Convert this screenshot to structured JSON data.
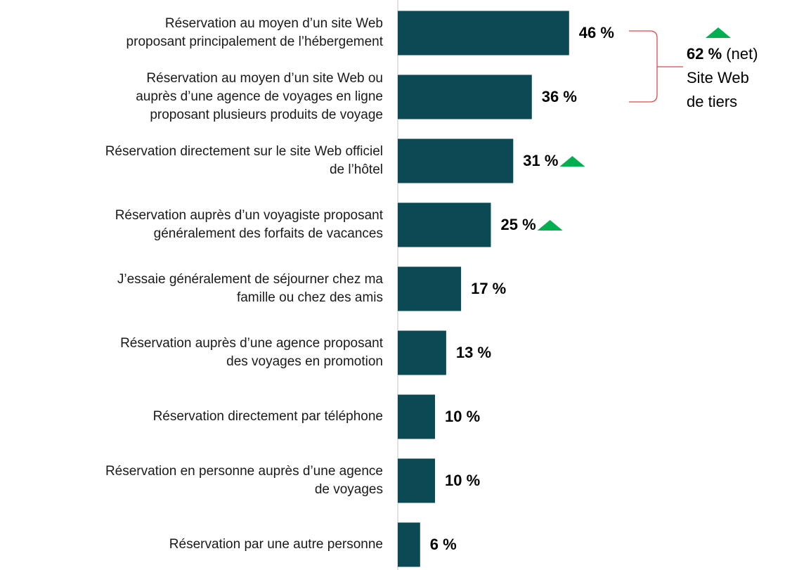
{
  "chart_data": {
    "type": "bar",
    "orientation": "horizontal",
    "categories": [
      "Réservation au moyen d’un site Web\nproposant principalement de l’hébergement",
      "Réservation au moyen d’un site Web ou\nauprès d’une agence de voyages en ligne\nproposant plusieurs produits de voyage",
      "Réservation directement sur le site Web officiel\nde l’hôtel",
      "Réservation auprès d’un voyagiste proposant\ngénéralement des forfaits de vacances",
      "J’essaie généralement de séjourner chez ma\nfamille ou chez des amis",
      "Réservation auprès d’une agence proposant\ndes voyages en promotion",
      "Réservation directement par téléphone",
      "Réservation en personne auprès d’une agence\nde voyages",
      "Réservation par une autre personne"
    ],
    "values": [
      46,
      36,
      31,
      25,
      17,
      13,
      10,
      10,
      6
    ],
    "value_labels": [
      "46 %",
      "36 %",
      "31 %",
      "25 %",
      "17 %",
      "13 %",
      "10 %",
      "10 %",
      "6 %"
    ],
    "increase": [
      false,
      false,
      true,
      true,
      false,
      false,
      false,
      false,
      false
    ],
    "color": "#0b4a54",
    "increase_color": "#00b050",
    "annotation": {
      "value": 62,
      "value_label": "62 %",
      "note": "(net)",
      "text": "Site Web\nde tiers",
      "increase": true,
      "color": "#e0474c"
    }
  }
}
